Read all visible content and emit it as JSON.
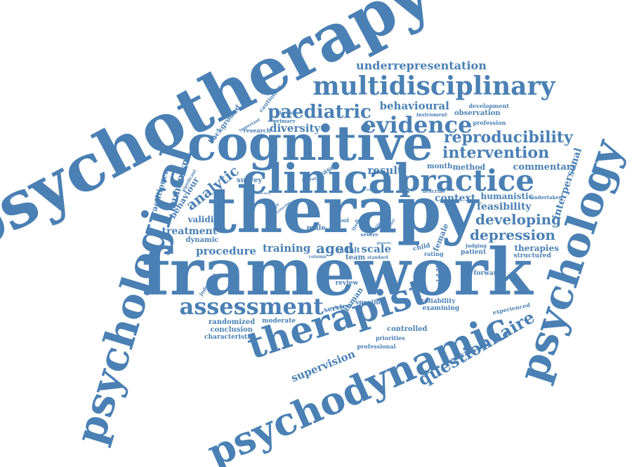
{
  "colors": {
    "word": "#4a80b4",
    "background": "#ffffff"
  },
  "words": [
    "psychotherapy",
    "therapy",
    "framework",
    "cognitive",
    "clinical",
    "psychological",
    "psychodynamic",
    "psychology",
    "therapist",
    "practice",
    "multidisciplinary",
    "assessment",
    "evidence",
    "paediatric",
    "reproducibility",
    "intervention",
    "questionnaire",
    "underrepresentation",
    "developing",
    "depression",
    "aged",
    "analytic",
    "behavioural",
    "commentary",
    "context",
    "diversity",
    "feasibility",
    "humanism",
    "humanistic",
    "interpersonal",
    "procedure",
    "result",
    "scale",
    "supervision",
    "training",
    "treatment",
    "validity",
    "behaviour",
    "dynamic",
    "female",
    "middle",
    "randomized",
    "conclusion",
    "characteristic",
    "moderate",
    "controlled",
    "priorities",
    "professional",
    "review",
    "service",
    "specific",
    "human",
    "reliability",
    "examining",
    "experienced",
    "forward",
    "judgment",
    "structured",
    "therapies",
    "patient",
    "rating",
    "child",
    "survey",
    "based",
    "literature",
    "practitioner",
    "background",
    "research",
    "cautionary",
    "important",
    "significant",
    "content",
    "primary",
    "diverse",
    "development",
    "instrument",
    "observation",
    "profession",
    "month",
    "method",
    "undertaken",
    "describe",
    "judging",
    "male",
    "adult",
    "team",
    "severe",
    "standard",
    "column",
    "tool",
    "item",
    "core",
    "reference",
    "generic",
    "efficacy",
    "recording",
    "versatile",
    "rater",
    "criterion",
    "verbal"
  ]
}
